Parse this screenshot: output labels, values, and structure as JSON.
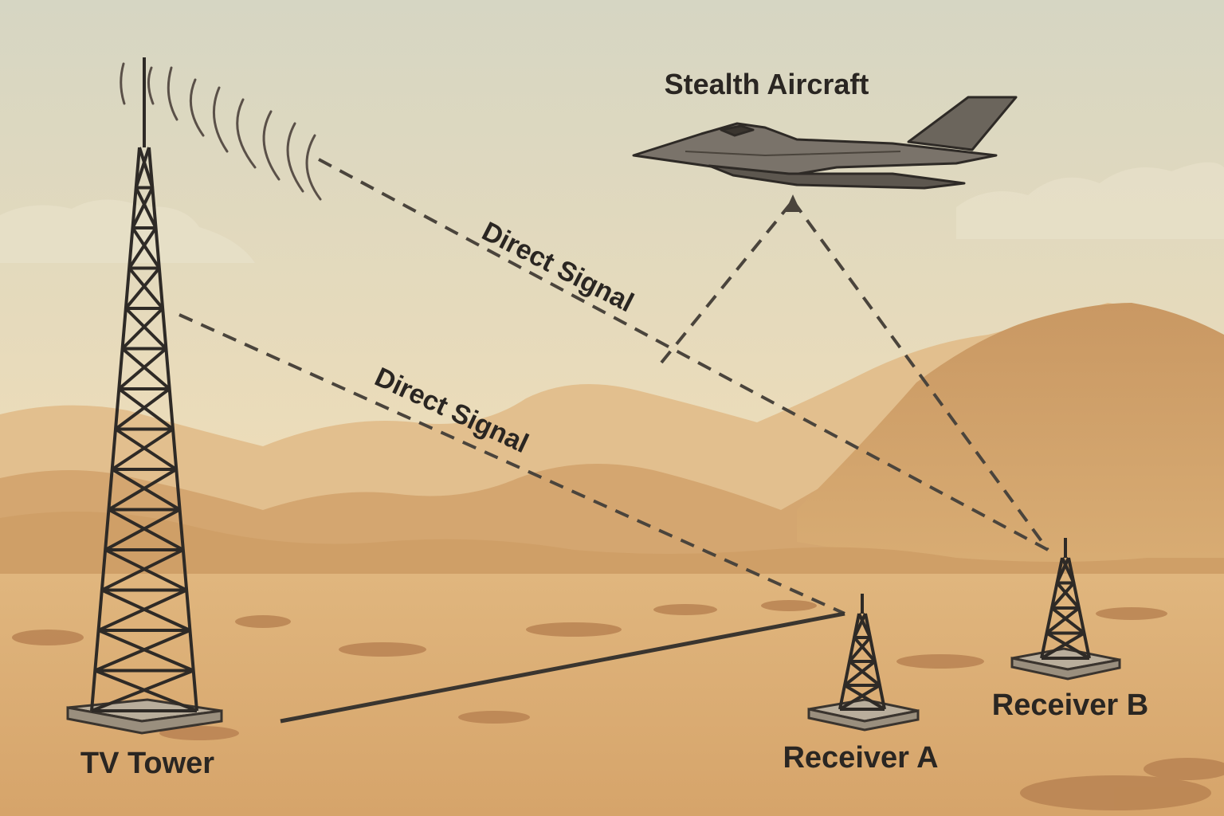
{
  "labels": {
    "aircraft": "Stealth Aircraft",
    "tower": "TV Tower",
    "receiver_a": "Receiver A",
    "receiver_b": "Receiver B",
    "direct_signal_upper": "Direct Signal",
    "direct_signal_lower": "Direct Signal"
  },
  "colors": {
    "sky_top": "#d9d8c4",
    "sky_bottom": "#f0ddb8",
    "mountain_far": "#ddb98a",
    "mountain_near": "#cc9d66",
    "desert_floor": "#dcae74",
    "line": "#4a443c",
    "structure": "#2e2a26"
  }
}
